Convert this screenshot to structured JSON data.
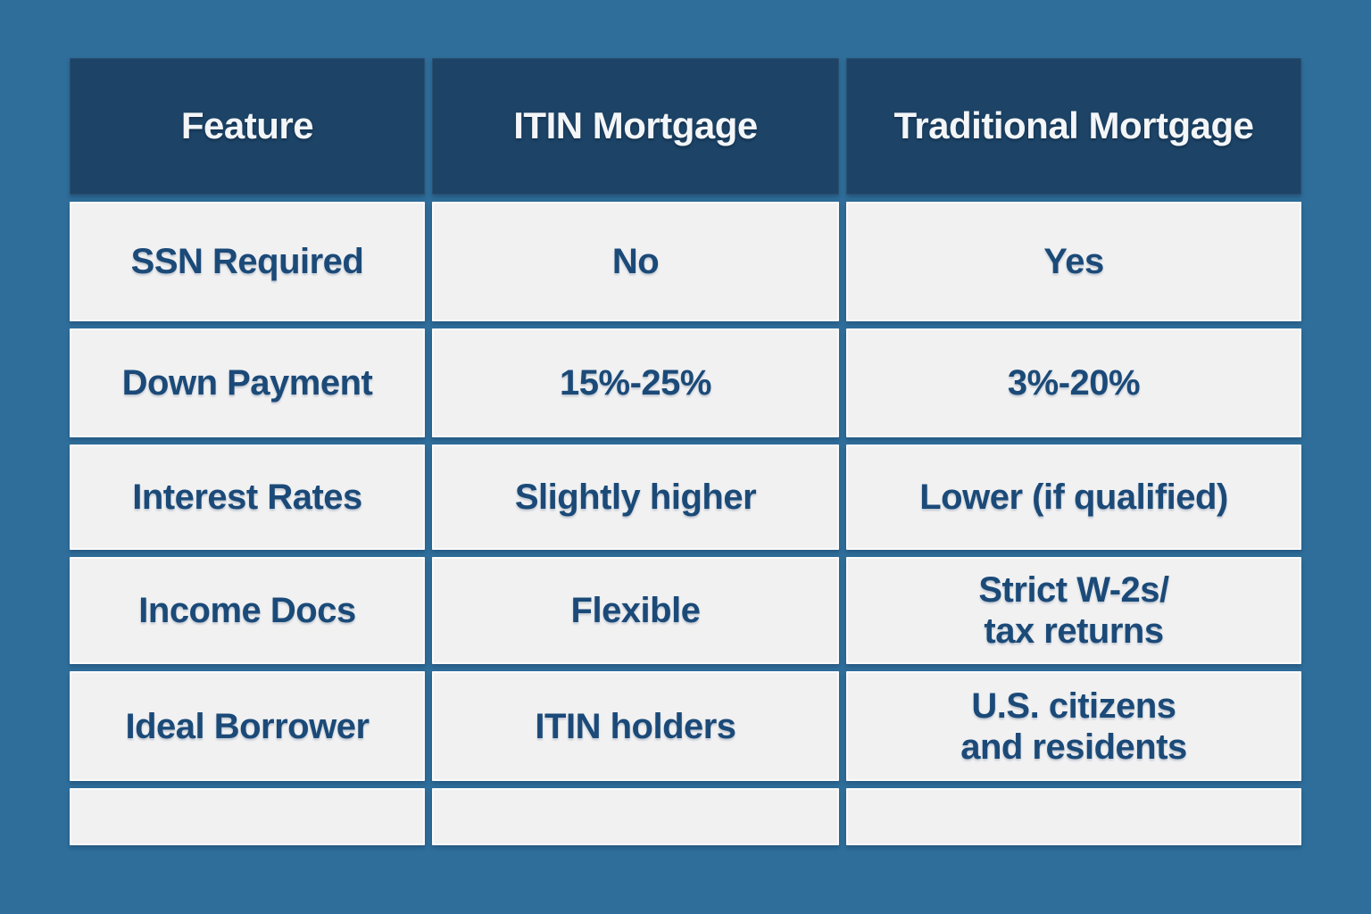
{
  "chart_data": {
    "type": "table",
    "columns": [
      "Feature",
      "ITIN Mortgage",
      "Traditional Mortgage"
    ],
    "rows": [
      [
        "SSN Required",
        "No",
        "Yes"
      ],
      [
        "Down Payment",
        "15%-25%",
        "3%-20%"
      ],
      [
        "Interest Rates",
        "Slightly higher",
        "Lower (if qualified)"
      ],
      [
        "Income Docs",
        "Flexible",
        "Strict W-2s/\ntax returns"
      ],
      [
        "Ideal Borrower",
        "ITIN holders",
        "U.S. citizens\nand residents"
      ],
      [
        "",
        "",
        ""
      ]
    ]
  },
  "colors": {
    "page_background": "#2F6E9B",
    "header_background": "#1D4467",
    "header_text": "#F3F5F7",
    "cell_background": "#F1F1F2",
    "cell_text": "#1B4A78"
  }
}
